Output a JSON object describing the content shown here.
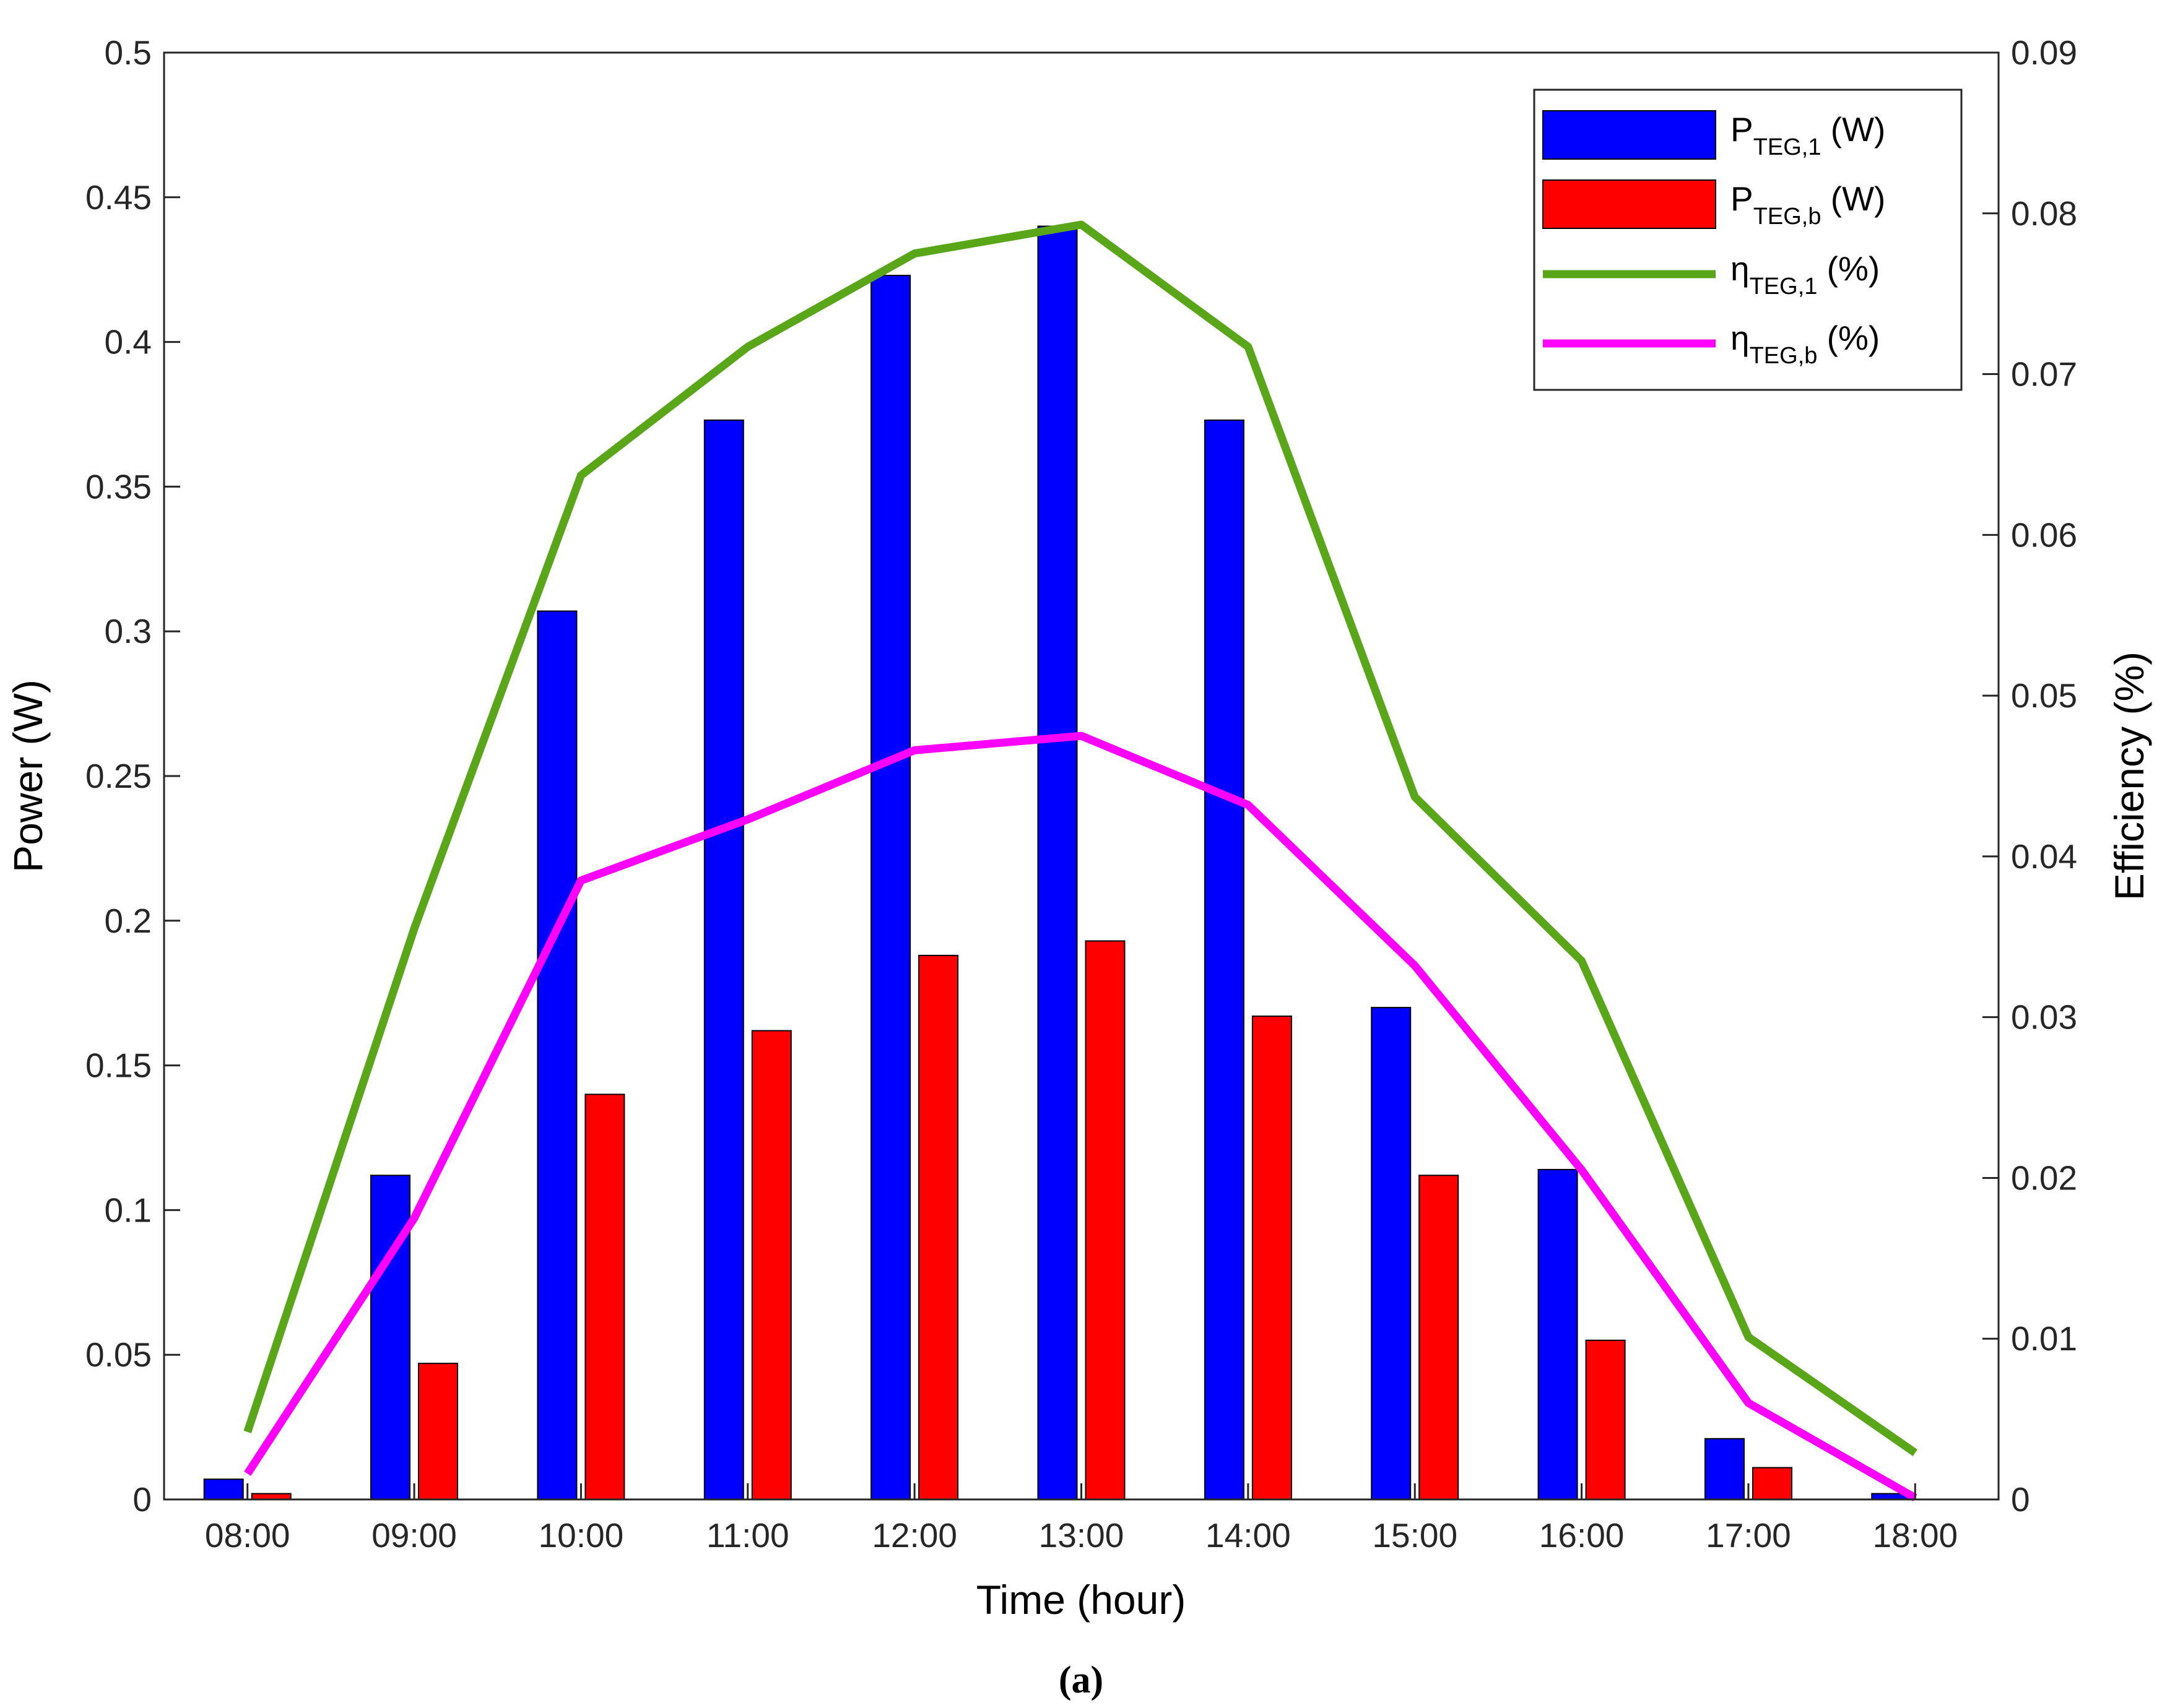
{
  "chart_data": {
    "type": "bar+line",
    "categories": [
      "08:00",
      "09:00",
      "10:00",
      "11:00",
      "12:00",
      "13:00",
      "14:00",
      "15:00",
      "16:00",
      "17:00",
      "18:00"
    ],
    "xlabel": "Time (hour)",
    "ylabel_left": "Power (W)",
    "ylabel_right": "Efficiency (%)",
    "ylim_left": [
      0,
      0.5
    ],
    "ylim_right": [
      0,
      0.09
    ],
    "yticks_left": [
      "0",
      "0.05",
      "0.1",
      "0.15",
      "0.2",
      "0.25",
      "0.3",
      "0.35",
      "0.4",
      "0.45",
      "0.5"
    ],
    "yticks_right": [
      "0",
      "0.01",
      "0.02",
      "0.03",
      "0.04",
      "0.05",
      "0.06",
      "0.07",
      "0.08",
      "0.09"
    ],
    "grid": false,
    "legend_position": "top-right",
    "caption": "(a)",
    "series": [
      {
        "name": "P_TEG,1 (W)",
        "label_main": "P",
        "label_sub": "TEG,1",
        "label_tail": " (W)",
        "kind": "bar",
        "axis": "left",
        "color": "#0000ff",
        "values": [
          0.007,
          0.112,
          0.307,
          0.373,
          0.423,
          0.44,
          0.373,
          0.17,
          0.114,
          0.021,
          0.002
        ]
      },
      {
        "name": "P_TEG,b (W)",
        "label_main": "P",
        "label_sub": "TEG,b",
        "label_tail": " (W)",
        "kind": "bar",
        "axis": "left",
        "color": "#ff0000",
        "values": [
          0.002,
          0.047,
          0.14,
          0.162,
          0.188,
          0.193,
          0.167,
          0.112,
          0.055,
          0.011,
          0.0
        ]
      },
      {
        "name": "η_TEG,1 (%)",
        "label_main": "η",
        "label_sub": "TEG,1",
        "label_tail": " (%)",
        "kind": "line",
        "axis": "right",
        "color": "#59a619",
        "values": [
          0.0042,
          0.0355,
          0.0637,
          0.0717,
          0.0775,
          0.0793,
          0.0717,
          0.0437,
          0.0335,
          0.0101,
          0.0029
        ]
      },
      {
        "name": "η_TEG,b (%)",
        "label_main": "η",
        "label_sub": "TEG,b",
        "label_tail": " (%)",
        "kind": "line",
        "axis": "right",
        "color": "#ff00ff",
        "values": [
          0.0016,
          0.0175,
          0.0385,
          0.0423,
          0.0466,
          0.0475,
          0.0432,
          0.0332,
          0.0205,
          0.006,
          0.0001
        ]
      }
    ]
  }
}
